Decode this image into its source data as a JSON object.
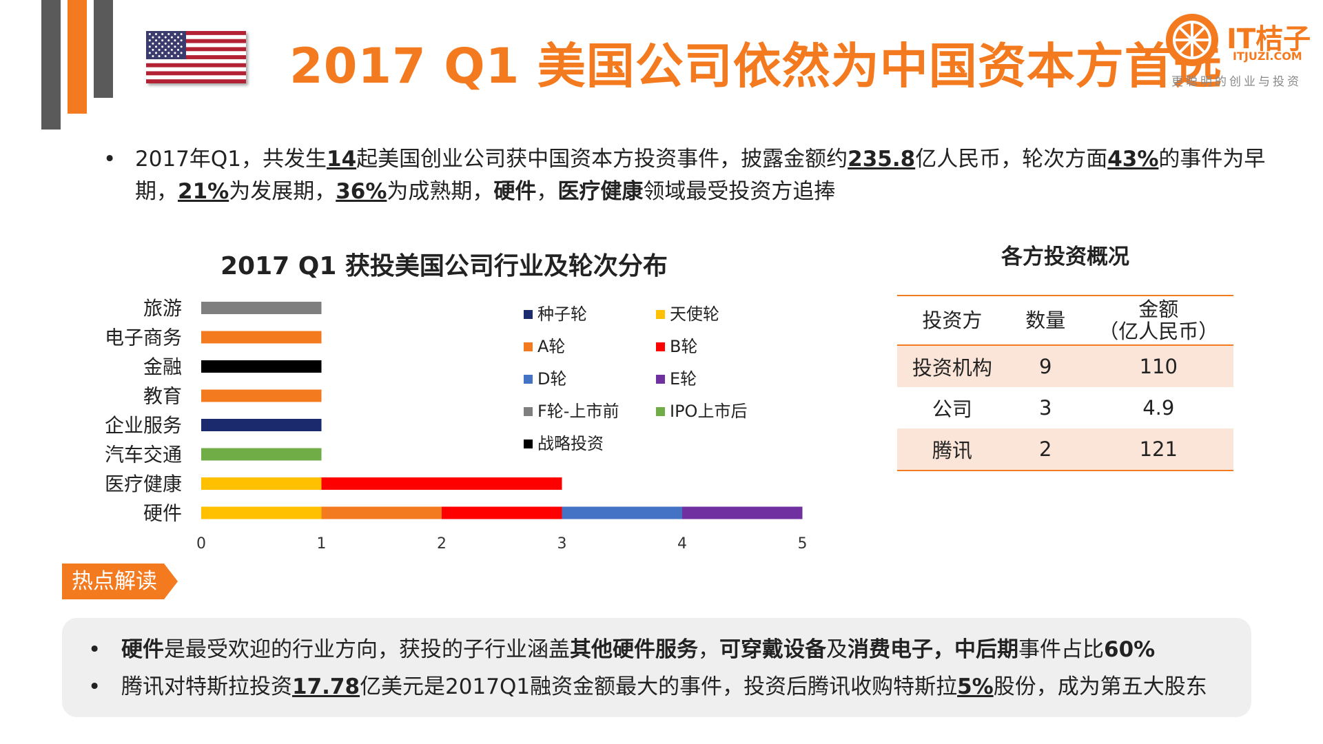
{
  "header": {
    "title": "2017 Q1 美国公司依然为中国资本方首选",
    "flag_icon": "us-flag-icon",
    "logo": {
      "name": "IT桔子",
      "url": "ITJUZI.COM",
      "slogan": "更聪明的创业与投资"
    },
    "accent_color": "#f47a20"
  },
  "summary": {
    "bullet": "•",
    "parts": [
      "2017年Q1，共发生",
      "14",
      "起美国创业公司获中国资本方投资事件，披露金额约",
      "235.8",
      "亿人民币，轮次方面",
      "43%",
      "的事件为早期，",
      "21%",
      "为发展期，",
      "36%",
      "为成熟期，",
      "硬件",
      "，",
      "医疗健康",
      "领域最受投资方追捧"
    ]
  },
  "chart_title": "2017 Q1 获投美国公司行业及轮次分布",
  "chart_data": {
    "type": "bar",
    "orientation": "horizontal",
    "stacked": true,
    "title": "2017 Q1 获投美国公司行业及轮次分布",
    "categories": [
      "旅游",
      "电子商务",
      "金融",
      "教育",
      "企业服务",
      "汽车交通",
      "医疗健康",
      "硬件"
    ],
    "xlim": [
      0,
      5
    ],
    "xticks": [
      0,
      1,
      2,
      3,
      4,
      5
    ],
    "series": [
      {
        "name": "种子轮",
        "color": "#1a2a6c",
        "values": [
          0,
          0,
          0,
          0,
          1,
          0,
          0,
          0
        ]
      },
      {
        "name": "天使轮",
        "color": "#ffc000",
        "values": [
          0,
          0,
          0,
          0,
          0,
          0,
          1,
          1
        ]
      },
      {
        "name": "A轮",
        "color": "#f47a20",
        "values": [
          0,
          1,
          0,
          1,
          0,
          0,
          0,
          1
        ]
      },
      {
        "name": "B轮",
        "color": "#ff0000",
        "values": [
          0,
          0,
          0,
          0,
          0,
          0,
          2,
          1
        ]
      },
      {
        "name": "D轮",
        "color": "#4472c4",
        "values": [
          0,
          0,
          0,
          0,
          0,
          0,
          0,
          1
        ]
      },
      {
        "name": "E轮",
        "color": "#7030a0",
        "values": [
          0,
          0,
          0,
          0,
          0,
          0,
          0,
          1
        ]
      },
      {
        "name": "F轮-上市前",
        "color": "#7f7f7f",
        "values": [
          1,
          0,
          0,
          0,
          0,
          0,
          0,
          0
        ]
      },
      {
        "name": "IPO上市后",
        "color": "#70ad47",
        "values": [
          0,
          0,
          0,
          0,
          0,
          1,
          0,
          0
        ]
      },
      {
        "name": "战略投资",
        "color": "#000000",
        "values": [
          0,
          0,
          1,
          0,
          0,
          0,
          0,
          0
        ]
      }
    ],
    "legend_position": "right"
  },
  "table": {
    "title": "各方投资概况",
    "headers": [
      "投资方",
      "数量",
      "金额",
      "（亿人民币）"
    ],
    "rows": [
      [
        "投资机构",
        "9",
        "110"
      ],
      [
        "公司",
        "3",
        "4.9"
      ],
      [
        "腾讯",
        "2",
        "121"
      ]
    ]
  },
  "hot": {
    "tag": "热点解读",
    "bullet": "•",
    "line1": [
      "硬件",
      "是最受欢迎的行业方向，获投的子行业涵盖",
      "其他硬件服务",
      "，",
      "可穿戴设备",
      "及",
      "消费电子",
      "，",
      "中后期",
      "事件占比",
      "60%"
    ],
    "line2": [
      "腾讯对特斯拉投资",
      "17.78",
      "亿美元是2017Q1融资金额最大的事件，投资后腾讯收购特斯拉",
      "5%",
      "股份，成为第五大股东"
    ]
  }
}
